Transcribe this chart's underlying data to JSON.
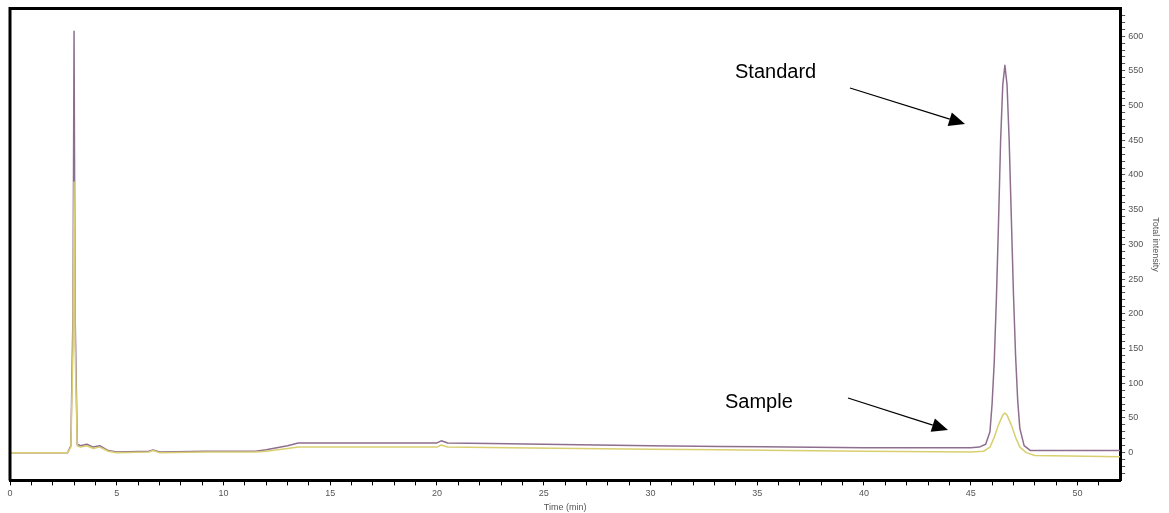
{
  "chart_data": {
    "type": "line",
    "xlabel": "Time (min)",
    "ylabel": "Total intensity",
    "xlim": [
      0,
      52
    ],
    "ylim": [
      -40,
      640
    ],
    "xticks": [
      0,
      {
        "value": 1,
        "label": null
      },
      {
        "value": 2,
        "label": null
      },
      {
        "value": 3,
        "label": null
      },
      {
        "value": 4,
        "label": null
      },
      5,
      {
        "value": 6,
        "label": null
      },
      {
        "value": 7,
        "label": null
      },
      {
        "value": 8,
        "label": null
      },
      {
        "value": 9,
        "label": null
      },
      10,
      {
        "value": 11,
        "label": null
      },
      {
        "value": 12,
        "label": null
      },
      {
        "value": 13,
        "label": null
      },
      {
        "value": 14,
        "label": null
      },
      15,
      {
        "value": 16,
        "label": null
      },
      {
        "value": 17,
        "label": null
      },
      {
        "value": 18,
        "label": null
      },
      {
        "value": 19,
        "label": null
      },
      20,
      {
        "value": 21,
        "label": null
      },
      {
        "value": 22,
        "label": null
      },
      {
        "value": 23,
        "label": null
      },
      {
        "value": 24,
        "label": null
      },
      25,
      {
        "value": 26,
        "label": null
      },
      {
        "value": 27,
        "label": null
      },
      {
        "value": 28,
        "label": null
      },
      {
        "value": 29,
        "label": null
      },
      30,
      {
        "value": 31,
        "label": null
      },
      {
        "value": 32,
        "label": null
      },
      {
        "value": 33,
        "label": null
      },
      {
        "value": 34,
        "label": null
      },
      35,
      {
        "value": 36,
        "label": null
      },
      {
        "value": 37,
        "label": null
      },
      {
        "value": 38,
        "label": null
      },
      {
        "value": 39,
        "label": null
      },
      40,
      {
        "value": 41,
        "label": null
      },
      {
        "value": 42,
        "label": null
      },
      {
        "value": 43,
        "label": null
      },
      {
        "value": 44,
        "label": null
      },
      45,
      {
        "value": 46,
        "label": null
      },
      {
        "value": 47,
        "label": null
      },
      {
        "value": 48,
        "label": null
      },
      {
        "value": 49,
        "label": null
      },
      50,
      {
        "value": 51,
        "label": null
      }
    ],
    "yticks": [
      {
        "value": -30,
        "label": null
      },
      {
        "value": -20,
        "label": null
      },
      {
        "value": -10,
        "label": null
      },
      0,
      {
        "value": 10,
        "label": null
      },
      {
        "value": 20,
        "label": null
      },
      {
        "value": 30,
        "label": null
      },
      {
        "value": 40,
        "label": null
      },
      50,
      {
        "value": 60,
        "label": null
      },
      {
        "value": 70,
        "label": null
      },
      {
        "value": 80,
        "label": null
      },
      {
        "value": 90,
        "label": null
      },
      100,
      {
        "value": 110,
        "label": null
      },
      {
        "value": 120,
        "label": null
      },
      {
        "value": 130,
        "label": null
      },
      {
        "value": 140,
        "label": null
      },
      150,
      {
        "value": 160,
        "label": null
      },
      {
        "value": 170,
        "label": null
      },
      {
        "value": 180,
        "label": null
      },
      {
        "value": 190,
        "label": null
      },
      200,
      {
        "value": 210,
        "label": null
      },
      {
        "value": 220,
        "label": null
      },
      {
        "value": 230,
        "label": null
      },
      {
        "value": 240,
        "label": null
      },
      250,
      {
        "value": 260,
        "label": null
      },
      {
        "value": 270,
        "label": null
      },
      {
        "value": 280,
        "label": null
      },
      {
        "value": 290,
        "label": null
      },
      300,
      {
        "value": 310,
        "label": null
      },
      {
        "value": 320,
        "label": null
      },
      {
        "value": 330,
        "label": null
      },
      {
        "value": 340,
        "label": null
      },
      350,
      {
        "value": 360,
        "label": null
      },
      {
        "value": 370,
        "label": null
      },
      {
        "value": 380,
        "label": null
      },
      {
        "value": 390,
        "label": null
      },
      400,
      {
        "value": 410,
        "label": null
      },
      {
        "value": 420,
        "label": null
      },
      {
        "value": 430,
        "label": null
      },
      {
        "value": 440,
        "label": null
      },
      450,
      {
        "value": 460,
        "label": null
      },
      {
        "value": 470,
        "label": null
      },
      {
        "value": 480,
        "label": null
      },
      {
        "value": 490,
        "label": null
      },
      500,
      {
        "value": 510,
        "label": null
      },
      {
        "value": 520,
        "label": null
      },
      {
        "value": 530,
        "label": null
      },
      {
        "value": 540,
        "label": null
      },
      550,
      {
        "value": 560,
        "label": null
      },
      {
        "value": 570,
        "label": null
      },
      {
        "value": 580,
        "label": null
      },
      {
        "value": 590,
        "label": null
      },
      600,
      {
        "value": 610,
        "label": null
      },
      {
        "value": 620,
        "label": null
      },
      {
        "value": 630,
        "label": null
      }
    ],
    "grid": false,
    "legend": false,
    "marker": "none",
    "line_style": "solid",
    "series": [
      {
        "color": "#8e6e8e",
        "x": [
          0,
          2.7,
          2.85,
          2.95,
          3.0,
          3.05,
          3.15,
          3.3,
          3.6,
          3.9,
          4.2,
          4.6,
          5,
          6.5,
          6.7,
          7,
          9.2,
          11.5,
          12,
          13,
          13.5,
          20,
          20.2,
          20.5,
          30,
          33.3,
          40,
          45,
          45.4,
          45.7,
          45.9,
          46.0,
          46.1,
          46.2,
          46.3,
          46.4,
          46.5,
          46.6,
          46.7,
          46.8,
          46.9,
          47.0,
          47.1,
          47.2,
          47.3,
          47.5,
          47.8,
          52
        ],
        "values": [
          0,
          0,
          10,
          200,
          607,
          200,
          12,
          10,
          12,
          8,
          10,
          3,
          1,
          2,
          4,
          1,
          2,
          2,
          4,
          10,
          14,
          14,
          17,
          14,
          10,
          9,
          7,
          7,
          8,
          12,
          30,
          70,
          130,
          220,
          330,
          450,
          530,
          558,
          530,
          450,
          340,
          230,
          140,
          75,
          35,
          10,
          3,
          3
        ]
      },
      {
        "color": "#d9cf70",
        "x": [
          0,
          2.7,
          2.85,
          2.95,
          3.0,
          3.05,
          3.15,
          3.3,
          3.6,
          3.9,
          4.2,
          4.6,
          5,
          6.5,
          6.7,
          7,
          9.2,
          11.5,
          12,
          13,
          13.5,
          20,
          20.2,
          20.5,
          30,
          33.3,
          40,
          45,
          45.6,
          45.9,
          46.1,
          46.3,
          46.5,
          46.6,
          46.7,
          46.9,
          47.1,
          47.3,
          47.6,
          48,
          52
        ],
        "values": [
          0,
          0,
          8,
          150,
          390,
          150,
          10,
          8,
          10,
          6,
          8,
          2,
          0,
          1,
          3,
          0,
          1,
          1,
          2,
          6,
          8,
          8,
          11,
          8,
          5,
          4,
          2,
          1,
          2,
          8,
          22,
          40,
          54,
          57,
          54,
          40,
          22,
          8,
          0,
          -4,
          -6
        ]
      }
    ],
    "annotations": [
      "Standard",
      "Sample"
    ]
  }
}
